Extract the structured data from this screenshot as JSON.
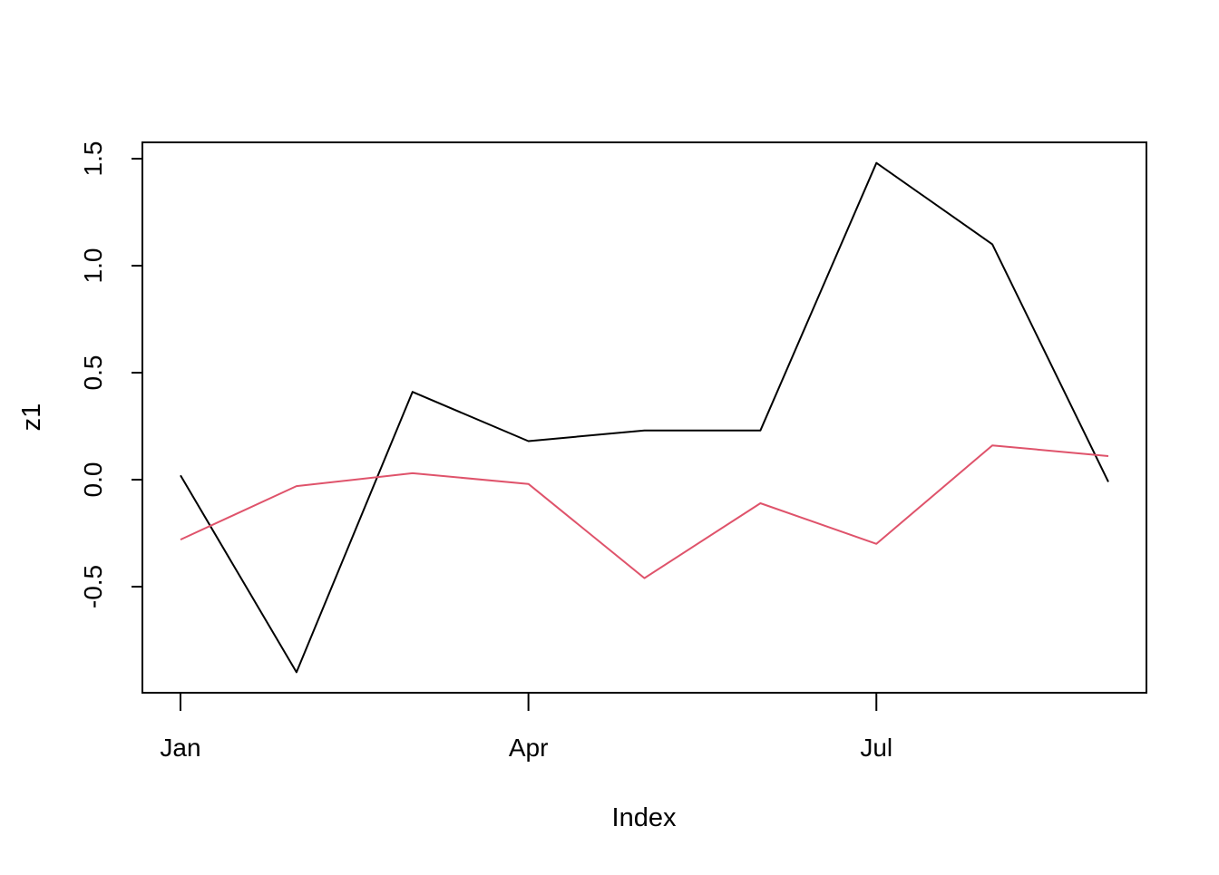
{
  "chart_data": {
    "type": "line",
    "xlabel": "Index",
    "ylabel": "z1",
    "x_tick_labels": [
      "Jan",
      "Apr",
      "Jul"
    ],
    "x_tick_months": [
      1,
      4,
      7
    ],
    "x_months": [
      1,
      2,
      3,
      4,
      5,
      6,
      7,
      8,
      9
    ],
    "ylim": [
      -1.0,
      1.6
    ],
    "y_ticks": [
      -0.5,
      0.0,
      0.5,
      1.0,
      1.5
    ],
    "y_tick_labels": [
      "-0.5",
      "0.0",
      "0.5",
      "1.0",
      "1.5"
    ],
    "grid": false,
    "series": [
      {
        "color": "#000000",
        "values": [
          0.02,
          -0.9,
          0.41,
          0.18,
          0.23,
          0.23,
          1.48,
          1.1,
          -0.01
        ]
      },
      {
        "color": "#DF536B",
        "values": [
          -0.28,
          -0.03,
          0.03,
          -0.02,
          -0.46,
          -0.11,
          -0.3,
          0.16,
          0.11
        ]
      }
    ]
  }
}
